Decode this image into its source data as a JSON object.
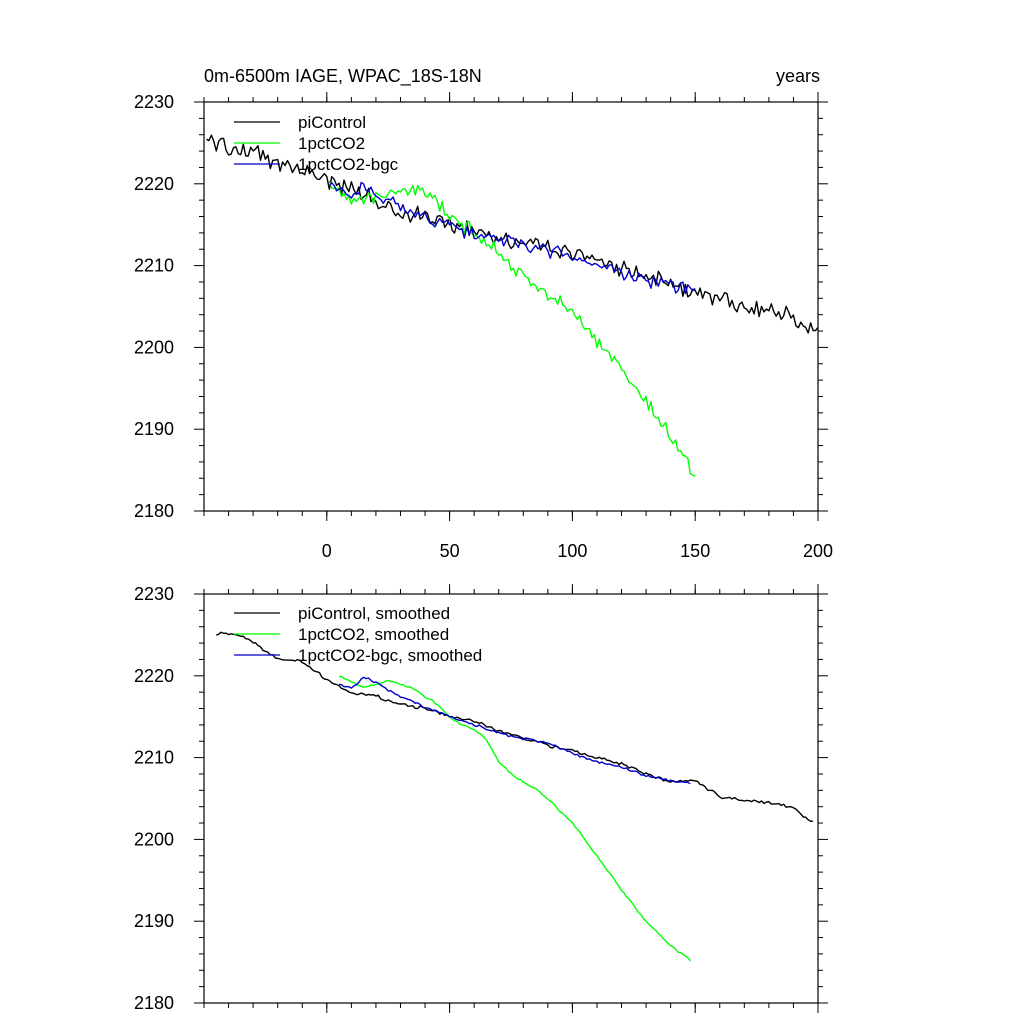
{
  "chart_data": [
    {
      "type": "line",
      "title": "0m-6500m IAGE, WPAC_18S-18N",
      "title_right": "years",
      "xlim": [
        -50,
        200
      ],
      "ylim": [
        2180,
        2230
      ],
      "x_ticks": [
        0,
        50,
        100,
        150,
        200
      ],
      "y_ticks": [
        2180,
        2190,
        2200,
        2210,
        2220,
        2230
      ],
      "x_tick_labels": [
        "0",
        "50",
        "100",
        "150",
        "200"
      ],
      "y_tick_labels": [
        "2180",
        "2190",
        "2200",
        "2210",
        "2220",
        "2230"
      ],
      "legend_position": "top-left",
      "series": [
        {
          "name": "piControl",
          "color": "#000000",
          "x_start": -49,
          "x_end": 200,
          "step": 1,
          "anchors_x": [
            -49,
            -40,
            -30,
            -20,
            -10,
            0,
            10,
            20,
            30,
            40,
            50,
            60,
            70,
            80,
            90,
            100,
            110,
            120,
            130,
            140,
            150,
            160,
            170,
            180,
            190,
            198,
            200
          ],
          "anchors_y": [
            2225.5,
            2224.5,
            2223.8,
            2222.5,
            2221.8,
            2220.5,
            2219.2,
            2218.0,
            2216.5,
            2215.8,
            2215.2,
            2214.5,
            2213.5,
            2212.8,
            2212.0,
            2211.5,
            2210.8,
            2209.5,
            2208.8,
            2207.5,
            2207.0,
            2206.0,
            2204.8,
            2204.3,
            2203.8,
            2202.0,
            2202.5
          ],
          "noise": 1.3
        },
        {
          "name": "1pctCO2",
          "color": "#00ff00",
          "x_start": 1,
          "x_end": 150,
          "step": 1,
          "anchors_x": [
            1,
            10,
            20,
            30,
            40,
            50,
            55,
            60,
            65,
            70,
            75,
            80,
            90,
            100,
            110,
            120,
            130,
            140,
            150
          ],
          "anchors_y": [
            2220.0,
            2218.5,
            2218.0,
            2219.5,
            2219.0,
            2216.0,
            2215.0,
            2214.0,
            2213.0,
            2212.0,
            2210.0,
            2208.5,
            2206.5,
            2204.0,
            2201.0,
            2197.5,
            2193.5,
            2189.0,
            2184.5
          ],
          "noise": 1.1
        },
        {
          "name": "1pctCO2-bgc",
          "color": "#0000cc",
          "x_start": 1,
          "x_end": 150,
          "step": 1,
          "anchors_x": [
            1,
            10,
            15,
            20,
            30,
            40,
            50,
            60,
            70,
            80,
            90,
            100,
            110,
            120,
            130,
            140,
            150
          ],
          "anchors_y": [
            2220.0,
            2218.3,
            2219.8,
            2219.0,
            2217.0,
            2216.0,
            2215.0,
            2213.8,
            2213.2,
            2212.5,
            2211.8,
            2211.0,
            2209.8,
            2209.2,
            2208.2,
            2207.5,
            2207.0
          ],
          "noise": 1.0
        }
      ]
    },
    {
      "type": "line",
      "ylim": [
        2180,
        2230
      ],
      "xlim": [
        -50,
        200
      ],
      "x_ticks": [
        0,
        50,
        100,
        150,
        200
      ],
      "y_ticks": [
        2180,
        2190,
        2200,
        2210,
        2220,
        2230
      ],
      "y_tick_labels": [
        "2180",
        "2190",
        "2200",
        "2210",
        "2220",
        "2230"
      ],
      "legend_position": "top-left",
      "series": [
        {
          "name": "piControl, smoothed",
          "color": "#000000",
          "x_start": -45,
          "x_end": 198,
          "step": 1,
          "anchors_x": [
            -45,
            -35,
            -30,
            -20,
            -10,
            0,
            10,
            20,
            30,
            40,
            50,
            60,
            70,
            80,
            90,
            100,
            110,
            120,
            130,
            140,
            150,
            160,
            170,
            180,
            190,
            198
          ],
          "anchors_y": [
            2225.2,
            2225.0,
            2224.2,
            2222.0,
            2221.8,
            2219.5,
            2218.0,
            2217.5,
            2216.5,
            2216.0,
            2215.0,
            2214.5,
            2213.2,
            2212.5,
            2211.5,
            2210.8,
            2210.0,
            2209.2,
            2208.0,
            2207.0,
            2207.2,
            2205.2,
            2204.8,
            2204.5,
            2203.8,
            2202.0
          ],
          "noise": 0.25
        },
        {
          "name": "1pctCO2, smoothed",
          "color": "#00ff00",
          "x_start": 5,
          "x_end": 148,
          "step": 1,
          "anchors_x": [
            5,
            15,
            25,
            30,
            35,
            40,
            45,
            50,
            55,
            60,
            65,
            70,
            75,
            80,
            85,
            90,
            100,
            110,
            120,
            130,
            140,
            148
          ],
          "anchors_y": [
            2220.0,
            2218.5,
            2219.5,
            2219.0,
            2218.5,
            2217.5,
            2216.5,
            2215.0,
            2214.0,
            2213.5,
            2212.2,
            2209.5,
            2208.0,
            2207.0,
            2206.2,
            2205.0,
            2202.0,
            2198.0,
            2193.8,
            2190.0,
            2187.0,
            2185.2
          ],
          "noise": 0.15
        },
        {
          "name": "1pctCO2-bgc, smoothed",
          "color": "#0000cc",
          "x_start": 5,
          "x_end": 148,
          "step": 1,
          "anchors_x": [
            5,
            10,
            15,
            20,
            25,
            30,
            40,
            50,
            60,
            70,
            80,
            90,
            100,
            110,
            120,
            130,
            140,
            148
          ],
          "anchors_y": [
            2219.0,
            2218.5,
            2219.8,
            2219.2,
            2218.2,
            2217.5,
            2216.2,
            2215.0,
            2214.0,
            2213.0,
            2212.3,
            2211.8,
            2210.5,
            2209.5,
            2208.8,
            2207.8,
            2207.2,
            2206.8
          ],
          "noise": 0.2
        }
      ]
    }
  ]
}
